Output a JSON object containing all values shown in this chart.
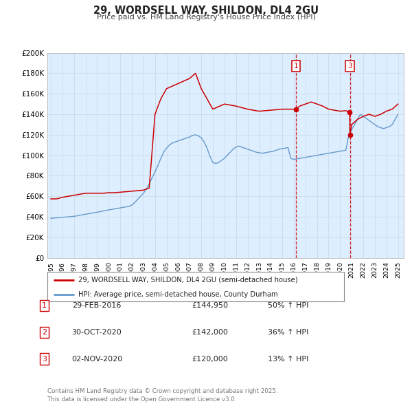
{
  "title": "29, WORDSELL WAY, SHILDON, DL4 2GU",
  "subtitle": "Price paid vs. HM Land Registry's House Price Index (HPI)",
  "legend_line1": "29, WORDSELL WAY, SHILDON, DL4 2GU (semi-detached house)",
  "legend_line2": "HPI: Average price, semi-detached house, County Durham",
  "red_color": "#cc0000",
  "blue_color": "#6699cc",
  "background_color": "#ffffff",
  "grid_color": "#c8d8e8",
  "chart_bg_color": "#ddeeff",
  "ylim": [
    0,
    200000
  ],
  "yticks": [
    0,
    20000,
    40000,
    60000,
    80000,
    100000,
    120000,
    140000,
    160000,
    180000,
    200000
  ],
  "ytick_labels": [
    "£0",
    "£20K",
    "£40K",
    "£60K",
    "£80K",
    "£100K",
    "£120K",
    "£140K",
    "£160K",
    "£180K",
    "£200K"
  ],
  "xlim_start": 1994.7,
  "xlim_end": 2025.5,
  "xticks": [
    1995,
    1996,
    1997,
    1998,
    1999,
    2000,
    2001,
    2002,
    2003,
    2004,
    2005,
    2006,
    2007,
    2008,
    2009,
    2010,
    2011,
    2012,
    2013,
    2014,
    2015,
    2016,
    2017,
    2018,
    2019,
    2020,
    2021,
    2022,
    2023,
    2024,
    2025
  ],
  "sale_events": [
    {
      "num": 1,
      "date_label": "29-FEB-2016",
      "price": 144950,
      "price_str": "£144,950",
      "pct": "50% ↑ HPI",
      "year": 2016.17
    },
    {
      "num": 2,
      "date_label": "30-OCT-2020",
      "price": 142000,
      "price_str": "£142,000",
      "pct": "36% ↑ HPI",
      "year": 2020.83
    },
    {
      "num": 3,
      "date_label": "02-NOV-2020",
      "price": 120000,
      "price_str": "£120,000",
      "pct": "13% ↑ HPI",
      "year": 2020.843
    }
  ],
  "vline_years": [
    2016.17,
    2020.843
  ],
  "vline_nums": [
    1,
    3
  ],
  "footnote": "Contains HM Land Registry data © Crown copyright and database right 2025.\nThis data is licensed under the Open Government Licence v3.0.",
  "hpi_data": {
    "years": [
      1995.0,
      1995.25,
      1995.5,
      1995.75,
      1996.0,
      1996.25,
      1996.5,
      1996.75,
      1997.0,
      1997.25,
      1997.5,
      1997.75,
      1998.0,
      1998.25,
      1998.5,
      1998.75,
      1999.0,
      1999.25,
      1999.5,
      1999.75,
      2000.0,
      2000.25,
      2000.5,
      2000.75,
      2001.0,
      2001.25,
      2001.5,
      2001.75,
      2002.0,
      2002.25,
      2002.5,
      2002.75,
      2003.0,
      2003.25,
      2003.5,
      2003.75,
      2004.0,
      2004.25,
      2004.5,
      2004.75,
      2005.0,
      2005.25,
      2005.5,
      2005.75,
      2006.0,
      2006.25,
      2006.5,
      2006.75,
      2007.0,
      2007.25,
      2007.5,
      2007.75,
      2008.0,
      2008.25,
      2008.5,
      2008.75,
      2009.0,
      2009.25,
      2009.5,
      2009.75,
      2010.0,
      2010.25,
      2010.5,
      2010.75,
      2011.0,
      2011.25,
      2011.5,
      2011.75,
      2012.0,
      2012.25,
      2012.5,
      2012.75,
      2013.0,
      2013.25,
      2013.5,
      2013.75,
      2014.0,
      2014.25,
      2014.5,
      2014.75,
      2015.0,
      2015.25,
      2015.5,
      2015.75,
      2016.0,
      2016.25,
      2016.5,
      2016.75,
      2017.0,
      2017.25,
      2017.5,
      2017.75,
      2018.0,
      2018.25,
      2018.5,
      2018.75,
      2019.0,
      2019.25,
      2019.5,
      2019.75,
      2020.0,
      2020.25,
      2020.5,
      2020.75,
      2021.0,
      2021.25,
      2021.5,
      2021.75,
      2022.0,
      2022.25,
      2022.5,
      2022.75,
      2023.0,
      2023.25,
      2023.5,
      2023.75,
      2024.0,
      2024.25,
      2024.5,
      2024.75,
      2025.0
    ],
    "values": [
      38500,
      38800,
      39000,
      39200,
      39500,
      39700,
      40000,
      40200,
      40500,
      40900,
      41500,
      42000,
      42500,
      43000,
      43500,
      44000,
      44500,
      45000,
      45600,
      46200,
      46800,
      47200,
      47700,
      48200,
      48700,
      49200,
      49700,
      50200,
      51500,
      54000,
      57000,
      60000,
      63000,
      67000,
      72000,
      78000,
      84000,
      90000,
      97000,
      103000,
      107000,
      110000,
      112000,
      113000,
      114000,
      115000,
      116000,
      117000,
      118000,
      119500,
      120000,
      119000,
      117000,
      113000,
      107000,
      99000,
      93000,
      92000,
      93000,
      95000,
      97000,
      100000,
      103000,
      106000,
      108000,
      109000,
      108000,
      107000,
      106000,
      105000,
      104000,
      103000,
      102500,
      102000,
      102500,
      103000,
      103500,
      104000,
      105000,
      106000,
      106500,
      107000,
      107500,
      97000,
      96000,
      96500,
      97000,
      97500,
      98000,
      98500,
      99000,
      99500,
      100000,
      100500,
      101000,
      101500,
      102000,
      102500,
      103000,
      103500,
      104000,
      104500,
      105000,
      120000,
      125000,
      130000,
      135000,
      140000,
      138000,
      136000,
      134000,
      132000,
      130000,
      128000,
      127000,
      126000,
      127000,
      128000,
      130000,
      135000,
      140000
    ]
  },
  "price_paid_data": {
    "years": [
      1995.0,
      1995.5,
      1996.0,
      1996.5,
      1997.0,
      1997.5,
      1998.0,
      1998.5,
      1999.0,
      1999.5,
      2000.0,
      2000.5,
      2001.0,
      2001.5,
      2002.0,
      2002.5,
      2003.0,
      2003.5,
      2004.0,
      2004.5,
      2005.0,
      2006.0,
      2007.0,
      2007.5,
      2008.0,
      2009.0,
      2010.0,
      2011.0,
      2012.0,
      2013.0,
      2014.0,
      2015.0,
      2016.17,
      2016.5,
      2017.0,
      2017.5,
      2018.0,
      2018.5,
      2019.0,
      2019.5,
      2020.0,
      2020.5,
      2020.83,
      2020.843,
      2021.0,
      2021.5,
      2022.0,
      2022.5,
      2023.0,
      2023.5,
      2024.0,
      2024.5,
      2025.0
    ],
    "values": [
      57500,
      57500,
      59000,
      60000,
      61000,
      62000,
      63000,
      63000,
      63000,
      63000,
      63500,
      63500,
      64000,
      64500,
      65000,
      65500,
      66000,
      68000,
      140000,
      155000,
      165000,
      170000,
      175000,
      180000,
      165000,
      145000,
      150000,
      148000,
      145000,
      143000,
      144000,
      145000,
      144950,
      148000,
      150000,
      152000,
      150000,
      148000,
      145000,
      144000,
      143000,
      143500,
      142000,
      120000,
      130000,
      135000,
      138000,
      140000,
      138000,
      140000,
      143000,
      145000,
      150000
    ]
  }
}
